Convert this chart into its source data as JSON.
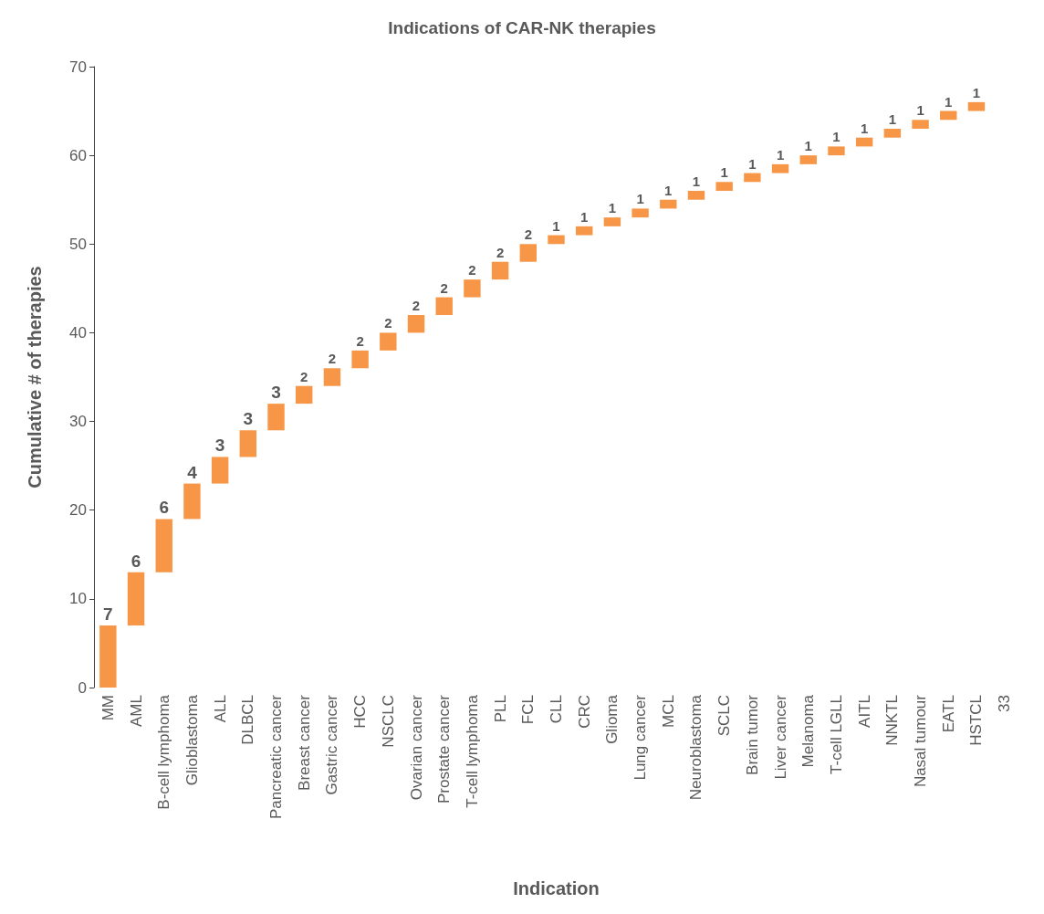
{
  "chart_data": {
    "type": "bar",
    "title": "Indications of CAR-NK therapies",
    "xlabel": "Indication",
    "ylabel": "Cumulative # of therapies",
    "categories": [
      "MM",
      "AML",
      "B-cell lymphoma",
      "Glioblastoma",
      "ALL",
      "DLBCL",
      "Pancreatic cancer",
      "Breast cancer",
      "Gastric cancer",
      "HCC",
      "NSCLC",
      "Ovarian cancer",
      "Prostate cancer",
      "T-cell lymphoma",
      "PLL",
      "FCL",
      "CLL",
      "CRC",
      "Glioma",
      "Lung cancer",
      "MCL",
      "Neuroblastoma",
      "SCLC",
      "Brain tumor",
      "Liver cancer",
      "Melanoma",
      "T-cell LGLL",
      "AITL",
      "NNKTL",
      "Nasal tumour",
      "EATL",
      "HSTCL",
      "33"
    ],
    "values": [
      7,
      6,
      6,
      4,
      3,
      3,
      3,
      2,
      2,
      2,
      2,
      2,
      2,
      2,
      2,
      2,
      1,
      1,
      1,
      1,
      1,
      1,
      1,
      1,
      1,
      1,
      1,
      1,
      1,
      1,
      1,
      1,
      null
    ],
    "base": [
      0,
      7,
      13,
      19,
      23,
      26,
      29,
      32,
      34,
      36,
      38,
      40,
      42,
      44,
      46,
      48,
      50,
      51,
      52,
      53,
      54,
      55,
      56,
      57,
      58,
      59,
      60,
      61,
      62,
      63,
      64,
      65,
      null
    ],
    "color": "#f79646",
    "ylim": [
      0,
      70
    ],
    "yticks": [
      0,
      10,
      20,
      30,
      40,
      50,
      60,
      70
    ],
    "grid": false,
    "data_labels": true
  }
}
